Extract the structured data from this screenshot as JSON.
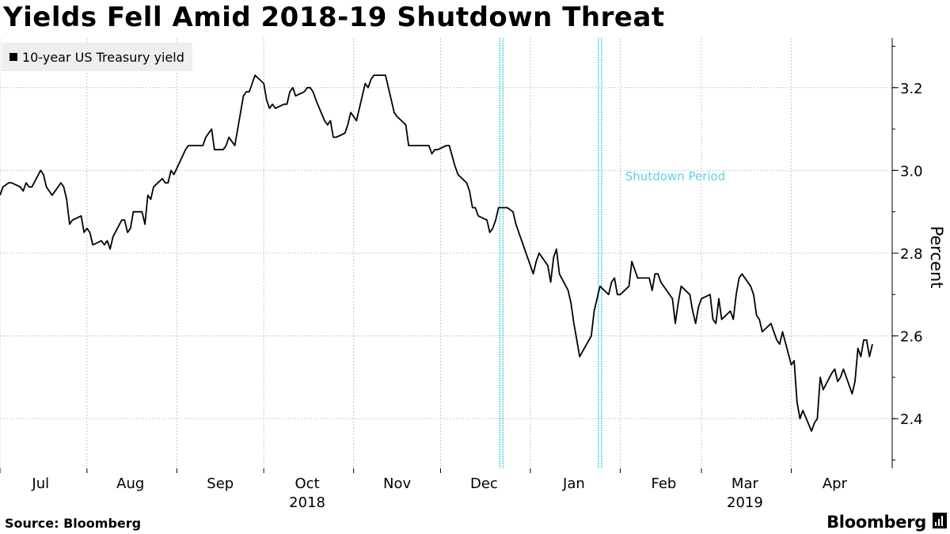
{
  "header": {
    "title": "Yields Fell Amid 2018-19 Shutdown Threat"
  },
  "legend": {
    "label": "10-year US Treasury yield"
  },
  "footer": {
    "source": "Source:  Bloomberg",
    "brand": "Bloomberg"
  },
  "colors": {
    "line": "#000000",
    "shutdown": "#5fd3e6",
    "grid": "#c8c8c8",
    "legend_bg": "#eeeeee"
  },
  "chart_data": {
    "type": "line",
    "title": "Yields Fell Amid 2018-19 Shutdown Threat",
    "xlabel": "",
    "ylabel": "Percent",
    "ylim": [
      2.28,
      3.32
    ],
    "yticks": [
      2.4,
      2.6,
      2.8,
      3.0,
      3.2
    ],
    "ytick_labels": [
      "2.4",
      "2.6",
      "2.8",
      "3.0",
      "3.2"
    ],
    "x_start": "2018-07-02",
    "x_end": "2019-04-29",
    "months": [
      {
        "label": "Jul",
        "date": "2018-07-01"
      },
      {
        "label": "Aug",
        "date": "2018-08-01"
      },
      {
        "label": "Sep",
        "date": "2018-09-01"
      },
      {
        "label": "Oct",
        "date": "2018-10-01"
      },
      {
        "label": "Nov",
        "date": "2018-11-01"
      },
      {
        "label": "Dec",
        "date": "2018-12-01"
      },
      {
        "label": "Jan",
        "date": "2019-01-01"
      },
      {
        "label": "Feb",
        "date": "2019-02-01"
      },
      {
        "label": "Mar",
        "date": "2019-03-01"
      },
      {
        "label": "Apr",
        "date": "2019-04-01"
      }
    ],
    "years": [
      {
        "label": "2018",
        "date": "2018-10-01"
      },
      {
        "label": "2019",
        "date": "2019-03-01"
      }
    ],
    "shutdown": {
      "start": "2018-12-22",
      "end": "2019-01-25",
      "label": "Shutdown Period"
    },
    "series": [
      {
        "name": "10-year US Treasury yield",
        "points": [
          [
            "2018-07-02",
            2.94
          ],
          [
            "2018-07-03",
            2.96
          ],
          [
            "2018-07-05",
            2.97
          ],
          [
            "2018-07-06",
            2.97
          ],
          [
            "2018-07-09",
            2.96
          ],
          [
            "2018-07-10",
            2.95
          ],
          [
            "2018-07-11",
            2.97
          ],
          [
            "2018-07-12",
            2.96
          ],
          [
            "2018-07-13",
            2.96
          ],
          [
            "2018-07-16",
            3.0
          ],
          [
            "2018-07-17",
            2.99
          ],
          [
            "2018-07-18",
            2.96
          ],
          [
            "2018-07-19",
            2.95
          ],
          [
            "2018-07-20",
            2.94
          ],
          [
            "2018-07-23",
            2.97
          ],
          [
            "2018-07-24",
            2.96
          ],
          [
            "2018-07-25",
            2.93
          ],
          [
            "2018-07-26",
            2.87
          ],
          [
            "2018-07-27",
            2.88
          ],
          [
            "2018-07-30",
            2.89
          ],
          [
            "2018-07-31",
            2.85
          ],
          [
            "2018-08-01",
            2.86
          ],
          [
            "2018-08-02",
            2.85
          ],
          [
            "2018-08-03",
            2.82
          ],
          [
            "2018-08-06",
            2.83
          ],
          [
            "2018-08-07",
            2.82
          ],
          [
            "2018-08-08",
            2.83
          ],
          [
            "2018-08-09",
            2.81
          ],
          [
            "2018-08-10",
            2.84
          ],
          [
            "2018-08-13",
            2.88
          ],
          [
            "2018-08-14",
            2.88
          ],
          [
            "2018-08-15",
            2.85
          ],
          [
            "2018-08-16",
            2.86
          ],
          [
            "2018-08-17",
            2.9
          ],
          [
            "2018-08-20",
            2.9
          ],
          [
            "2018-08-21",
            2.87
          ],
          [
            "2018-08-22",
            2.94
          ],
          [
            "2018-08-23",
            2.93
          ],
          [
            "2018-08-24",
            2.96
          ],
          [
            "2018-08-27",
            2.98
          ],
          [
            "2018-08-28",
            2.97
          ],
          [
            "2018-08-29",
            2.97
          ],
          [
            "2018-08-30",
            3.0
          ],
          [
            "2018-08-31",
            2.99
          ],
          [
            "2018-09-04",
            3.05
          ],
          [
            "2018-09-05",
            3.06
          ],
          [
            "2018-09-06",
            3.06
          ],
          [
            "2018-09-07",
            3.06
          ],
          [
            "2018-09-10",
            3.06
          ],
          [
            "2018-09-11",
            3.08
          ],
          [
            "2018-09-12",
            3.09
          ],
          [
            "2018-09-13",
            3.1
          ],
          [
            "2018-09-14",
            3.05
          ],
          [
            "2018-09-17",
            3.05
          ],
          [
            "2018-09-18",
            3.06
          ],
          [
            "2018-09-19",
            3.08
          ],
          [
            "2018-09-20",
            3.07
          ],
          [
            "2018-09-21",
            3.06
          ],
          [
            "2018-09-24",
            3.18
          ],
          [
            "2018-09-25",
            3.19
          ],
          [
            "2018-09-26",
            3.19
          ],
          [
            "2018-09-27",
            3.21
          ],
          [
            "2018-09-28",
            3.23
          ],
          [
            "2018-10-01",
            3.21
          ],
          [
            "2018-10-02",
            3.17
          ],
          [
            "2018-10-03",
            3.15
          ],
          [
            "2018-10-04",
            3.16
          ],
          [
            "2018-10-05",
            3.15
          ],
          [
            "2018-10-08",
            3.16
          ],
          [
            "2018-10-09",
            3.16
          ],
          [
            "2018-10-10",
            3.19
          ],
          [
            "2018-10-11",
            3.2
          ],
          [
            "2018-10-12",
            3.18
          ],
          [
            "2018-10-15",
            3.19
          ],
          [
            "2018-10-16",
            3.2
          ],
          [
            "2018-10-17",
            3.2
          ],
          [
            "2018-10-18",
            3.19
          ],
          [
            "2018-10-19",
            3.17
          ],
          [
            "2018-10-22",
            3.12
          ],
          [
            "2018-10-23",
            3.11
          ],
          [
            "2018-10-24",
            3.12
          ],
          [
            "2018-10-25",
            3.08
          ],
          [
            "2018-10-26",
            3.08
          ],
          [
            "2018-10-29",
            3.09
          ],
          [
            "2018-10-30",
            3.11
          ],
          [
            "2018-10-31",
            3.14
          ],
          [
            "2018-11-01",
            3.13
          ],
          [
            "2018-11-02",
            3.12
          ],
          [
            "2018-11-05",
            3.21
          ],
          [
            "2018-11-06",
            3.2
          ],
          [
            "2018-11-07",
            3.22
          ],
          [
            "2018-11-08",
            3.23
          ],
          [
            "2018-11-09",
            3.23
          ],
          [
            "2018-11-12",
            3.23
          ],
          [
            "2018-11-13",
            3.2
          ],
          [
            "2018-11-14",
            3.17
          ],
          [
            "2018-11-15",
            3.14
          ],
          [
            "2018-11-16",
            3.13
          ],
          [
            "2018-11-19",
            3.11
          ],
          [
            "2018-11-20",
            3.06
          ],
          [
            "2018-11-21",
            3.06
          ],
          [
            "2018-11-23",
            3.06
          ],
          [
            "2018-11-26",
            3.06
          ],
          [
            "2018-11-27",
            3.06
          ],
          [
            "2018-11-28",
            3.04
          ],
          [
            "2018-11-29",
            3.05
          ],
          [
            "2018-11-30",
            3.05
          ],
          [
            "2018-12-03",
            3.06
          ],
          [
            "2018-12-04",
            3.06
          ],
          [
            "2018-12-06",
            3.01
          ],
          [
            "2018-12-07",
            2.99
          ],
          [
            "2018-12-10",
            2.97
          ],
          [
            "2018-12-11",
            2.95
          ],
          [
            "2018-12-12",
            2.91
          ],
          [
            "2018-12-13",
            2.91
          ],
          [
            "2018-12-14",
            2.89
          ],
          [
            "2018-12-17",
            2.88
          ],
          [
            "2018-12-18",
            2.85
          ],
          [
            "2018-12-19",
            2.86
          ],
          [
            "2018-12-20",
            2.88
          ],
          [
            "2018-12-21",
            2.91
          ],
          [
            "2018-12-24",
            2.91
          ],
          [
            "2018-12-26",
            2.9
          ],
          [
            "2018-12-27",
            2.87
          ],
          [
            "2018-12-28",
            2.85
          ],
          [
            "2018-12-31",
            2.79
          ],
          [
            "2019-01-02",
            2.75
          ],
          [
            "2019-01-03",
            2.78
          ],
          [
            "2019-01-04",
            2.8
          ],
          [
            "2019-01-07",
            2.77
          ],
          [
            "2019-01-08",
            2.73
          ],
          [
            "2019-01-09",
            2.79
          ],
          [
            "2019-01-10",
            2.81
          ],
          [
            "2019-01-11",
            2.75
          ],
          [
            "2019-01-14",
            2.71
          ],
          [
            "2019-01-15",
            2.68
          ],
          [
            "2019-01-16",
            2.63
          ],
          [
            "2019-01-17",
            2.59
          ],
          [
            "2019-01-18",
            2.55
          ],
          [
            "2019-01-22",
            2.6
          ],
          [
            "2019-01-23",
            2.66
          ],
          [
            "2019-01-24",
            2.69
          ],
          [
            "2019-01-25",
            2.72
          ],
          [
            "2019-01-28",
            2.7
          ],
          [
            "2019-01-29",
            2.73
          ],
          [
            "2019-01-30",
            2.74
          ],
          [
            "2019-01-31",
            2.7
          ],
          [
            "2019-02-01",
            2.7
          ],
          [
            "2019-02-04",
            2.72
          ],
          [
            "2019-02-05",
            2.78
          ],
          [
            "2019-02-06",
            2.76
          ],
          [
            "2019-02-07",
            2.74
          ],
          [
            "2019-02-08",
            2.74
          ],
          [
            "2019-02-11",
            2.74
          ],
          [
            "2019-02-12",
            2.71
          ],
          [
            "2019-02-13",
            2.75
          ],
          [
            "2019-02-14",
            2.75
          ],
          [
            "2019-02-15",
            2.73
          ],
          [
            "2019-02-19",
            2.69
          ],
          [
            "2019-02-20",
            2.63
          ],
          [
            "2019-02-21",
            2.68
          ],
          [
            "2019-02-22",
            2.72
          ],
          [
            "2019-02-25",
            2.7
          ],
          [
            "2019-02-26",
            2.66
          ],
          [
            "2019-02-27",
            2.63
          ],
          [
            "2019-02-28",
            2.67
          ],
          [
            "2019-03-01",
            2.69
          ],
          [
            "2019-03-04",
            2.7
          ],
          [
            "2019-03-05",
            2.64
          ],
          [
            "2019-03-06",
            2.63
          ],
          [
            "2019-03-07",
            2.69
          ],
          [
            "2019-03-08",
            2.64
          ],
          [
            "2019-03-11",
            2.66
          ],
          [
            "2019-03-12",
            2.64
          ],
          [
            "2019-03-13",
            2.7
          ],
          [
            "2019-03-14",
            2.74
          ],
          [
            "2019-03-15",
            2.75
          ],
          [
            "2019-03-18",
            2.72
          ],
          [
            "2019-03-19",
            2.7
          ],
          [
            "2019-03-20",
            2.65
          ],
          [
            "2019-03-21",
            2.64
          ],
          [
            "2019-03-22",
            2.61
          ],
          [
            "2019-03-25",
            2.63
          ],
          [
            "2019-03-26",
            2.61
          ],
          [
            "2019-03-27",
            2.59
          ],
          [
            "2019-03-28",
            2.58
          ],
          [
            "2019-03-29",
            2.61
          ],
          [
            "2019-04-01",
            2.53
          ],
          [
            "2019-04-02",
            2.54
          ],
          [
            "2019-04-03",
            2.44
          ],
          [
            "2019-04-04",
            2.4
          ],
          [
            "2019-04-05",
            2.42
          ],
          [
            "2019-04-08",
            2.37
          ],
          [
            "2019-04-09",
            2.39
          ],
          [
            "2019-04-10",
            2.4
          ],
          [
            "2019-04-11",
            2.5
          ],
          [
            "2019-04-12",
            2.47
          ],
          [
            "2019-04-15",
            2.51
          ],
          [
            "2019-04-16",
            2.52
          ],
          [
            "2019-04-17",
            2.49
          ],
          [
            "2019-04-18",
            2.5
          ],
          [
            "2019-04-19",
            2.52
          ],
          [
            "2019-04-22",
            2.46
          ],
          [
            "2019-04-23",
            2.49
          ],
          [
            "2019-04-24",
            2.57
          ],
          [
            "2019-04-25",
            2.55
          ],
          [
            "2019-04-26",
            2.59
          ],
          [
            "2019-04-27",
            2.59
          ],
          [
            "2019-04-28",
            2.55
          ],
          [
            "2019-04-29",
            2.58
          ]
        ]
      }
    ]
  }
}
